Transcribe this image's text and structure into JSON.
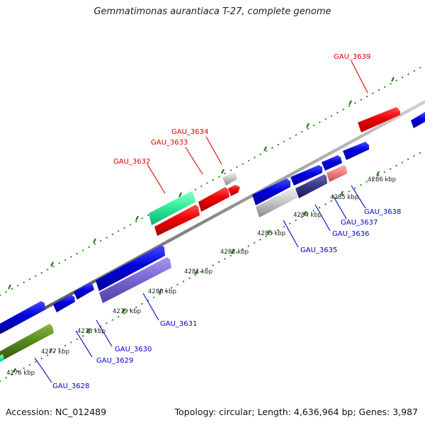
{
  "title": "Gemmatimonas aurantiaca T-27, complete genome",
  "footer": {
    "accession": "Accession: NC_012489",
    "summary": "Topology: circular; Length: 4,636,964 bp; Genes: 3,987"
  },
  "colors": {
    "backbone": "#8c8c8c",
    "tick_green": "#2e8b22",
    "label_red": "#e00000",
    "label_blue": "#0000cc",
    "gene_blue": "#0000dd",
    "gene_red": "#ee0000",
    "gene_lavender": "#7b68d8",
    "gene_navy": "#3a3a8a",
    "gene_grey": "#c4c4c4",
    "gene_pink": "#f08080",
    "gene_green": "#30ee99",
    "gene_olive": "#5a8a1a"
  },
  "scale": [
    "4276 kbp",
    "4277 kbp",
    "4278 kbp",
    "4279 kbp",
    "4280 kbp",
    "4281 kbp",
    "4282 kbp",
    "4283 kbp",
    "4284 kbp",
    "4285 kbp",
    "4286 kbp"
  ],
  "genes": [
    {
      "id": "GAU_3628",
      "color": "blue"
    },
    {
      "id": "GAU_3629",
      "color": "blue"
    },
    {
      "id": "GAU_3630",
      "color": "blue"
    },
    {
      "id": "GAU_3631",
      "color": "blue"
    },
    {
      "id": "GAU_3632",
      "color": "red"
    },
    {
      "id": "GAU_3633",
      "color": "red"
    },
    {
      "id": "GAU_3634",
      "color": "red"
    },
    {
      "id": "GAU_3635",
      "color": "blue"
    },
    {
      "id": "GAU_3636",
      "color": "blue"
    },
    {
      "id": "GAU_3637",
      "color": "blue"
    },
    {
      "id": "GAU_3638",
      "color": "blue"
    },
    {
      "id": "GAU_3639",
      "color": "red"
    }
  ]
}
